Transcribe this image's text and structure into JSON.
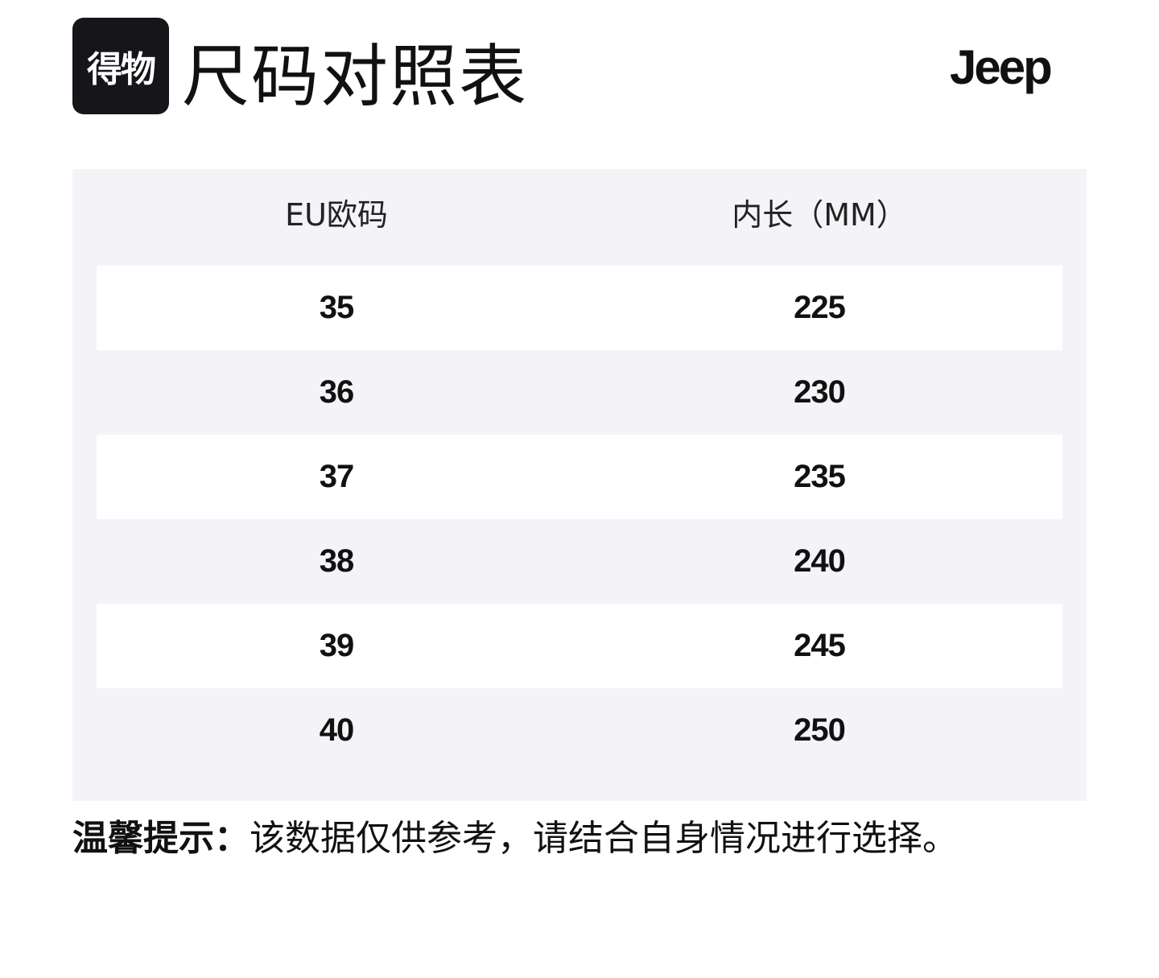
{
  "header": {
    "logo_text": "得物",
    "title": "尺码对照表",
    "brand": "Jeep"
  },
  "table": {
    "headers": [
      "EU欧码",
      "内长（MM）"
    ],
    "rows": [
      [
        35,
        225
      ],
      [
        36,
        230
      ],
      [
        37,
        235
      ],
      [
        38,
        240
      ],
      [
        39,
        245
      ],
      [
        40,
        250
      ]
    ]
  },
  "tip": {
    "label": "温馨提示：",
    "text": "该数据仅供参考，请结合自身情况进行选择。"
  }
}
